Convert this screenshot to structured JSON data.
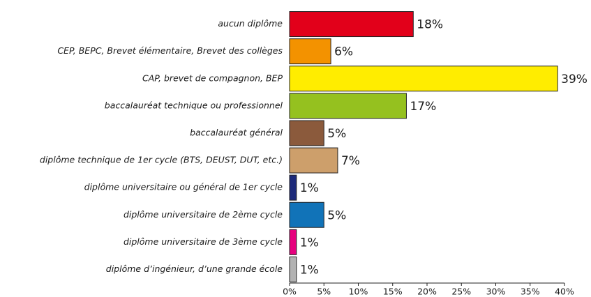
{
  "chart_data": {
    "type": "bar",
    "orientation": "horizontal",
    "categories": [
      "aucun diplôme",
      "CEP, BEPC, Brevet élémentaire, Brevet des collèges",
      "CAP, brevet de compagnon, BEP",
      "baccalauréat technique ou professionnel",
      "baccalauréat général",
      "diplôme technique de 1er cycle (BTS, DEUST, DUT, etc.)",
      "diplôme universitaire ou général de 1er cycle",
      "diplôme universitaire de 2ème cycle",
      "diplôme universitaire de 3ème cycle",
      "diplôme d’ingénieur, d’une grande école"
    ],
    "values": [
      18,
      6,
      39,
      17,
      5,
      7,
      1,
      5,
      1,
      1
    ],
    "value_labels": [
      "18%",
      "6%",
      "39%",
      "17%",
      "5%",
      "7%",
      "1%",
      "5%",
      "1%",
      "1%"
    ],
    "colors": [
      "#e2001a",
      "#f39200",
      "#ffed00",
      "#95c11f",
      "#8b5a3c",
      "#cd9f6b",
      "#1d2a7a",
      "#1173b8",
      "#e6007e",
      "#b2b2b2"
    ],
    "xlim": [
      0,
      40
    ],
    "xticks": [
      {
        "value": 0,
        "label": "0%"
      },
      {
        "value": 5,
        "label": "5%"
      },
      {
        "value": 10,
        "label": "10%"
      },
      {
        "value": 15,
        "label": "15%"
      },
      {
        "value": 20,
        "label": "20%"
      },
      {
        "value": 25,
        "label": "25%"
      },
      {
        "value": 30,
        "label": "30%"
      },
      {
        "value": 35,
        "label": "35%"
      },
      {
        "value": 40,
        "label": "40%"
      }
    ]
  }
}
